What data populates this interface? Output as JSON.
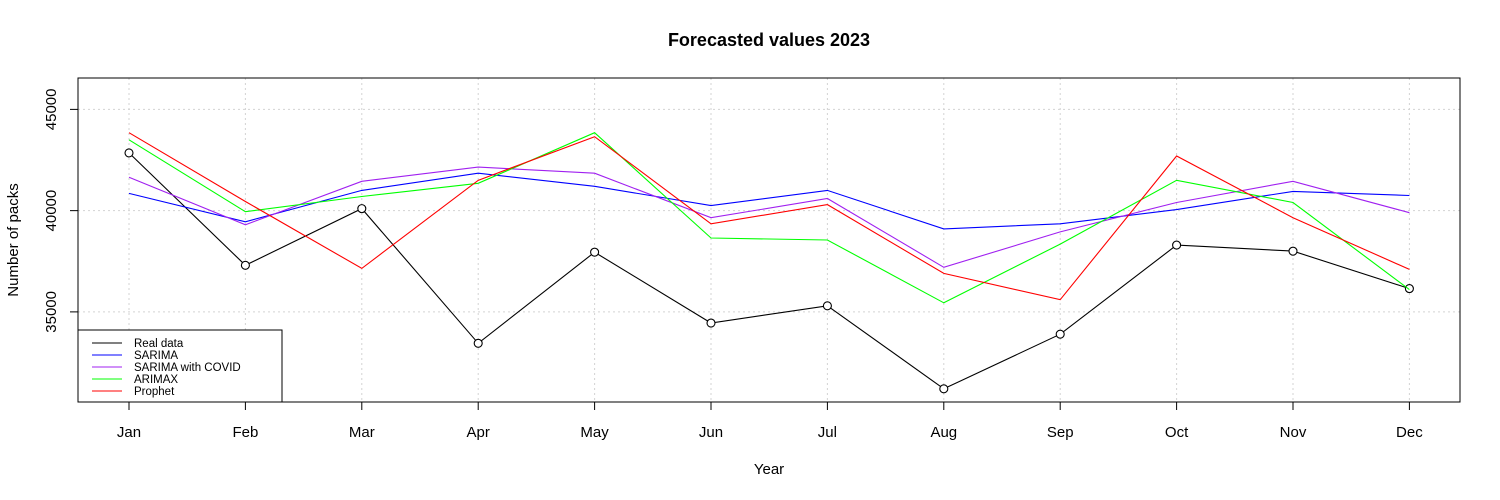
{
  "chart_data": {
    "type": "line",
    "title": "Forecasted values 2023",
    "xlabel": "Year",
    "ylabel": "Number of packs",
    "categories": [
      "Jan",
      "Feb",
      "Mar",
      "Apr",
      "May",
      "Jun",
      "Jul",
      "Aug",
      "Sep",
      "Oct",
      "Nov",
      "Dec"
    ],
    "yticks": [
      35000,
      40000,
      45000
    ],
    "ylim": [
      30550,
      46550
    ],
    "grid": true,
    "legend_position": "bottom-left",
    "series": [
      {
        "name": "Real data",
        "color": "#000000",
        "markers": true,
        "values": [
          42850,
          37300,
          40100,
          33450,
          37950,
          34450,
          35300,
          31200,
          33900,
          38300,
          38000,
          36150
        ]
      },
      {
        "name": "SARIMA",
        "color": "#0000ff",
        "markers": false,
        "values": [
          40850,
          39450,
          41000,
          41850,
          41200,
          40250,
          41000,
          39100,
          39350,
          40050,
          40950,
          40750
        ]
      },
      {
        "name": "SARIMA with COVID",
        "color": "#a020f0",
        "markers": false,
        "values": [
          41650,
          39300,
          41450,
          42150,
          41850,
          39650,
          40600,
          37200,
          38950,
          40400,
          41450,
          39900
        ]
      },
      {
        "name": "ARIMAX",
        "color": "#00ff00",
        "markers": false,
        "values": [
          43500,
          39950,
          40700,
          41350,
          43850,
          38650,
          38550,
          35450,
          38350,
          41500,
          40400,
          36100
        ]
      },
      {
        "name": "Prophet",
        "color": "#ff0000",
        "markers": false,
        "values": [
          43850,
          40450,
          37150,
          41500,
          43650,
          39350,
          40300,
          36900,
          35600,
          42700,
          39650,
          37100
        ]
      }
    ]
  }
}
